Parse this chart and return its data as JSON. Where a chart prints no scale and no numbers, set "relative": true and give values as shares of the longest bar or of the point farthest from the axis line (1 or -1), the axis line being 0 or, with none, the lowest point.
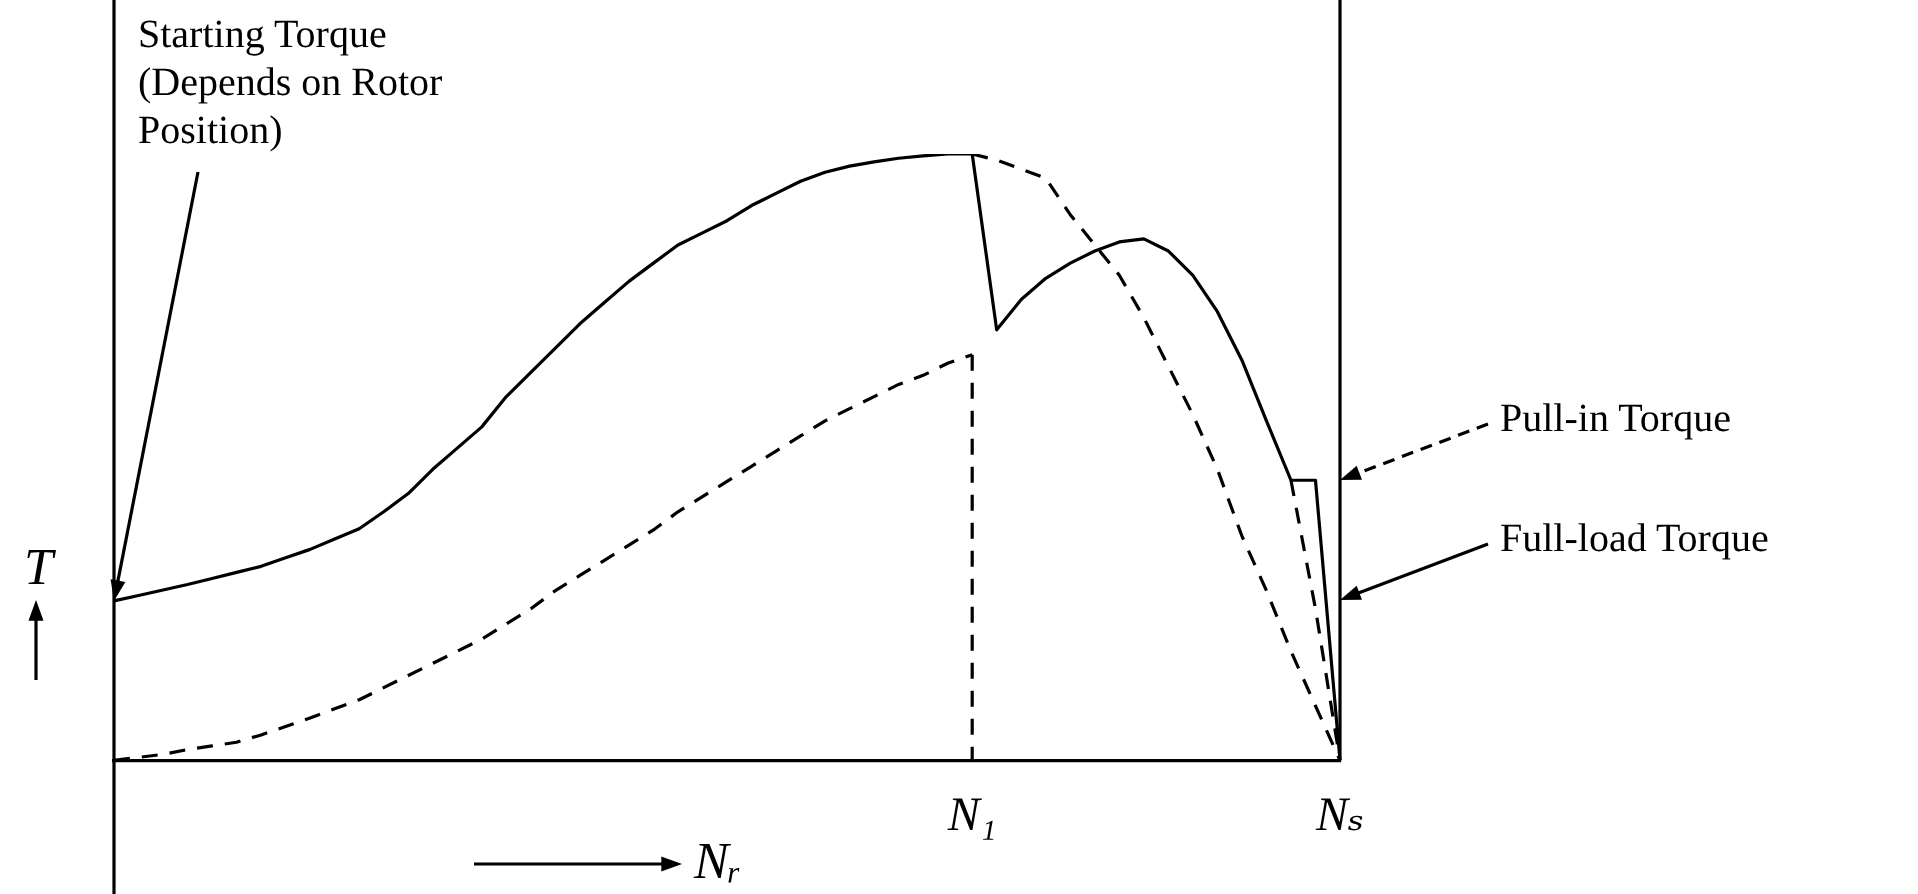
{
  "chart_data": {
    "type": "line",
    "relative": true,
    "xlabel": "Nᵣ",
    "ylabel": "T",
    "categories": [
      null,
      null,
      null,
      null,
      null,
      null,
      null,
      null,
      null,
      null,
      null,
      null,
      null,
      null,
      null,
      null,
      null,
      null,
      null,
      null,
      null,
      null,
      null,
      null,
      null,
      null,
      null,
      null,
      null,
      null,
      null,
      null,
      null,
      null,
      null,
      "N₁",
      null,
      null,
      null,
      null,
      null,
      null,
      null,
      null,
      null,
      null,
      null,
      null,
      null,
      null,
      "Nₛ"
    ],
    "grid": false,
    "legend": false,
    "marker": "none",
    "series": [
      {
        "color": "#000000",
        "line_style": "solid",
        "values": [
          0.263,
          0.272,
          0.281,
          0.29,
          0.3,
          0.31,
          0.32,
          0.334,
          0.348,
          0.365,
          0.382,
          0.41,
          0.44,
          0.48,
          0.515,
          0.55,
          0.6,
          0.64,
          0.68,
          0.72,
          0.755,
          0.79,
          0.82,
          0.85,
          0.87,
          0.89,
          0.915,
          0.935,
          0.955,
          0.97,
          0.98,
          0.987,
          0.993,
          0.997,
          1,
          1,
          0.71,
          0.76,
          0.795,
          0.82,
          0.84,
          0.855,
          0.86,
          0.84,
          0.8,
          0.74,
          0.66,
          0.56,
          0.462,
          0.462,
          0
        ]
      },
      {
        "color": "#000000",
        "line_style": "dashed",
        "values": [
          null,
          null,
          null,
          null,
          null,
          null,
          null,
          null,
          null,
          null,
          null,
          null,
          null,
          null,
          null,
          null,
          null,
          null,
          null,
          null,
          null,
          null,
          null,
          null,
          null,
          null,
          null,
          null,
          null,
          null,
          null,
          null,
          null,
          null,
          null,
          1,
          0.99,
          0.975,
          0.96,
          0.9,
          0.85,
          0.8,
          0.73,
          0.65,
          0.57,
          0.48,
          0.37,
          0.28,
          0.18,
          0.09,
          0
        ]
      },
      {
        "color": "#000000",
        "line_style": "dashed",
        "values": [
          0,
          0.005,
          0.01,
          0.018,
          0.024,
          0.03,
          0.042,
          0.056,
          0.07,
          0.085,
          0.1,
          0.12,
          0.14,
          0.16,
          0.18,
          0.2,
          0.225,
          0.25,
          0.28,
          0.305,
          0.33,
          0.355,
          0.38,
          0.41,
          0.435,
          0.46,
          0.485,
          0.51,
          0.535,
          0.56,
          0.58,
          0.6,
          0.62,
          0.635,
          0.655,
          0.669,
          null,
          null,
          null,
          null,
          null,
          null,
          null,
          null,
          null,
          null,
          null,
          null,
          null,
          null,
          null
        ]
      },
      {
        "color": "#000000",
        "line_style": "dashed",
        "values": [
          null,
          null,
          null,
          null,
          null,
          null,
          null,
          null,
          null,
          null,
          null,
          null,
          null,
          null,
          null,
          null,
          null,
          null,
          null,
          null,
          null,
          null,
          null,
          null,
          null,
          null,
          null,
          null,
          null,
          null,
          null,
          null,
          null,
          null,
          null,
          null,
          null,
          null,
          null,
          null,
          null,
          null,
          null,
          null,
          null,
          null,
          null,
          null,
          0.462,
          0.25,
          0
        ]
      }
    ],
    "ref_lines": [
      {
        "axis": "x",
        "value": "N₁",
        "color": "#000000",
        "line_style": "dashed"
      },
      {
        "axis": "x",
        "value": "Nₛ",
        "color": "#000000",
        "line_style": "solid"
      }
    ],
    "annotations": [
      "Starting Torque\n(Depends on Rotor\nPosition)",
      {
        "text": "Pull-in Torque",
        "x": "Nₛ",
        "y": 0.462
      },
      {
        "text": "Full-load Torque",
        "x": "Nₛ",
        "y": 0.263
      }
    ]
  }
}
